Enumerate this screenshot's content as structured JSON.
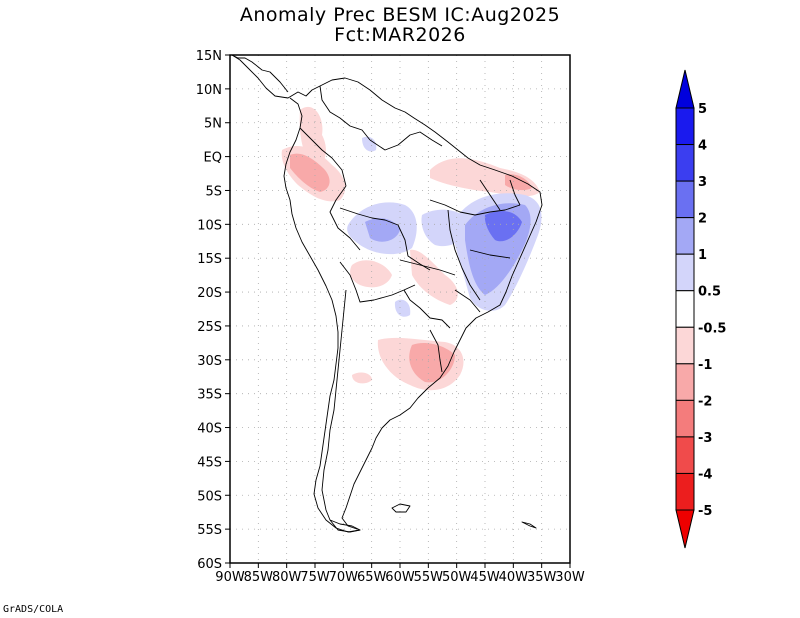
{
  "title": {
    "line1": "Anomaly Prec BESM IC:Aug2025",
    "line2": "Fct:MAR2026"
  },
  "credit": "GrADS/COLA",
  "map": {
    "lat_labels": [
      "15N",
      "10N",
      "5N",
      "EQ",
      "5S",
      "10S",
      "15S",
      "20S",
      "25S",
      "30S",
      "35S",
      "40S",
      "45S",
      "50S",
      "55S",
      "60S"
    ],
    "lon_labels": [
      "90W",
      "85W",
      "80W",
      "75W",
      "70W",
      "65W",
      "60W",
      "55W",
      "50W",
      "45W",
      "40W",
      "35W",
      "30W"
    ],
    "lat_values": [
      15,
      10,
      5,
      0,
      -5,
      -10,
      -15,
      -20,
      -25,
      -30,
      -35,
      -40,
      -45,
      -50,
      -55,
      -60
    ],
    "lon_values": [
      -90,
      -85,
      -80,
      -75,
      -70,
      -65,
      -60,
      -55,
      -50,
      -45,
      -40,
      -35,
      -30
    ],
    "lon_range": [
      -90,
      -30
    ],
    "lat_range": [
      -60,
      15
    ]
  },
  "colorbar": {
    "labels": [
      "5",
      "4",
      "3",
      "2",
      "1",
      "0.5",
      "-0.5",
      "-1",
      "-2",
      "-3",
      "-4",
      "-5"
    ],
    "bins": [
      {
        "from": 4,
        "to": 5,
        "color": "#1a1aee"
      },
      {
        "from": 3,
        "to": 4,
        "color": "#3b3ef0"
      },
      {
        "from": 2,
        "to": 3,
        "color": "#6a70f2"
      },
      {
        "from": 1,
        "to": 2,
        "color": "#a3a8f5"
      },
      {
        "from": 0.5,
        "to": 1,
        "color": "#d3d5fa"
      },
      {
        "from": -0.5,
        "to": 0.5,
        "color": "#ffffff"
      },
      {
        "from": -1,
        "to": -0.5,
        "color": "#fcd7d7"
      },
      {
        "from": -2,
        "to": -1,
        "color": "#f8a9a9"
      },
      {
        "from": -3,
        "to": -2,
        "color": "#f47c7c"
      },
      {
        "from": -4,
        "to": -3,
        "color": "#f04b4b"
      },
      {
        "from": -5,
        "to": -4,
        "color": "#ec1e1e"
      }
    ],
    "top_color": "#0000dd",
    "bottom_color": "#ee0000"
  }
}
